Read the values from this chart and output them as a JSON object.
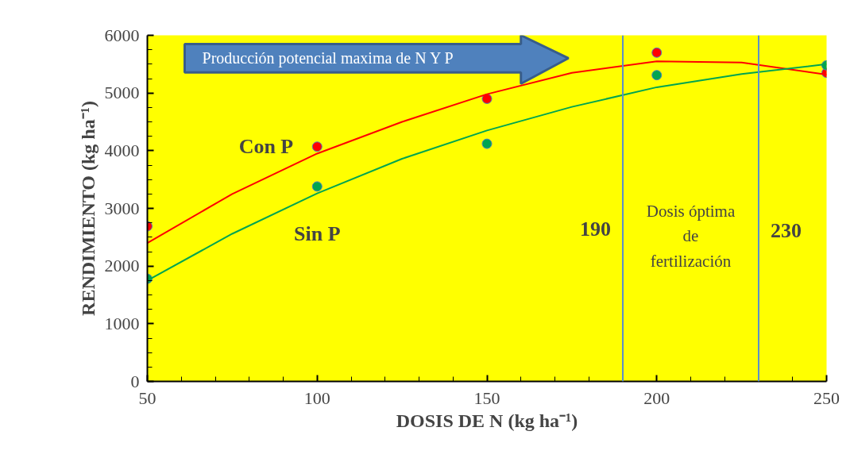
{
  "chart_data": {
    "type": "scatter",
    "xlabel": "DOSIS DE N (kg ha⁻¹)",
    "ylabel": "RENDIMIENTO (kg ha⁻¹)",
    "x": [
      50,
      100,
      150,
      200,
      250
    ],
    "series": [
      {
        "name": "Con P",
        "color": "#ff0000",
        "marker": "circle",
        "values": [
          2690,
          4070,
          4900,
          5700,
          5350
        ]
      },
      {
        "name": "Sin P",
        "color": "#00a550",
        "marker": "circle",
        "values": [
          1780,
          3380,
          4120,
          5310,
          5480
        ]
      },
      {
        "type": "line",
        "color": "#ff0000",
        "x": [
          50,
          75,
          100,
          125,
          150,
          175,
          200,
          225,
          250
        ],
        "values": [
          2400,
          3250,
          3950,
          4500,
          4980,
          5350,
          5550,
          5530,
          5320
        ]
      },
      {
        "type": "line",
        "color": "#00a550",
        "x": [
          50,
          75,
          100,
          125,
          150,
          175,
          200,
          225,
          250
        ],
        "values": [
          1750,
          2560,
          3260,
          3860,
          4350,
          4760,
          5100,
          5330,
          5500
        ]
      }
    ],
    "xlim": [
      50,
      250
    ],
    "xticks": [
      50,
      100,
      150,
      200,
      250
    ],
    "ylim": [
      0,
      6000
    ],
    "yticks": [
      0,
      1000,
      2000,
      3000,
      4000,
      5000,
      6000
    ],
    "grid": false,
    "ref_lines": [
      {
        "axis": "x",
        "value": 190,
        "label": "190",
        "color": "#5b8fc9"
      },
      {
        "axis": "x",
        "value": 230,
        "label": "230",
        "color": "#5b8fc9"
      }
    ],
    "annotations": [
      "Producción potencial maxima de N Y P",
      "Dosis óptima\nde\nfertilización"
    ]
  }
}
